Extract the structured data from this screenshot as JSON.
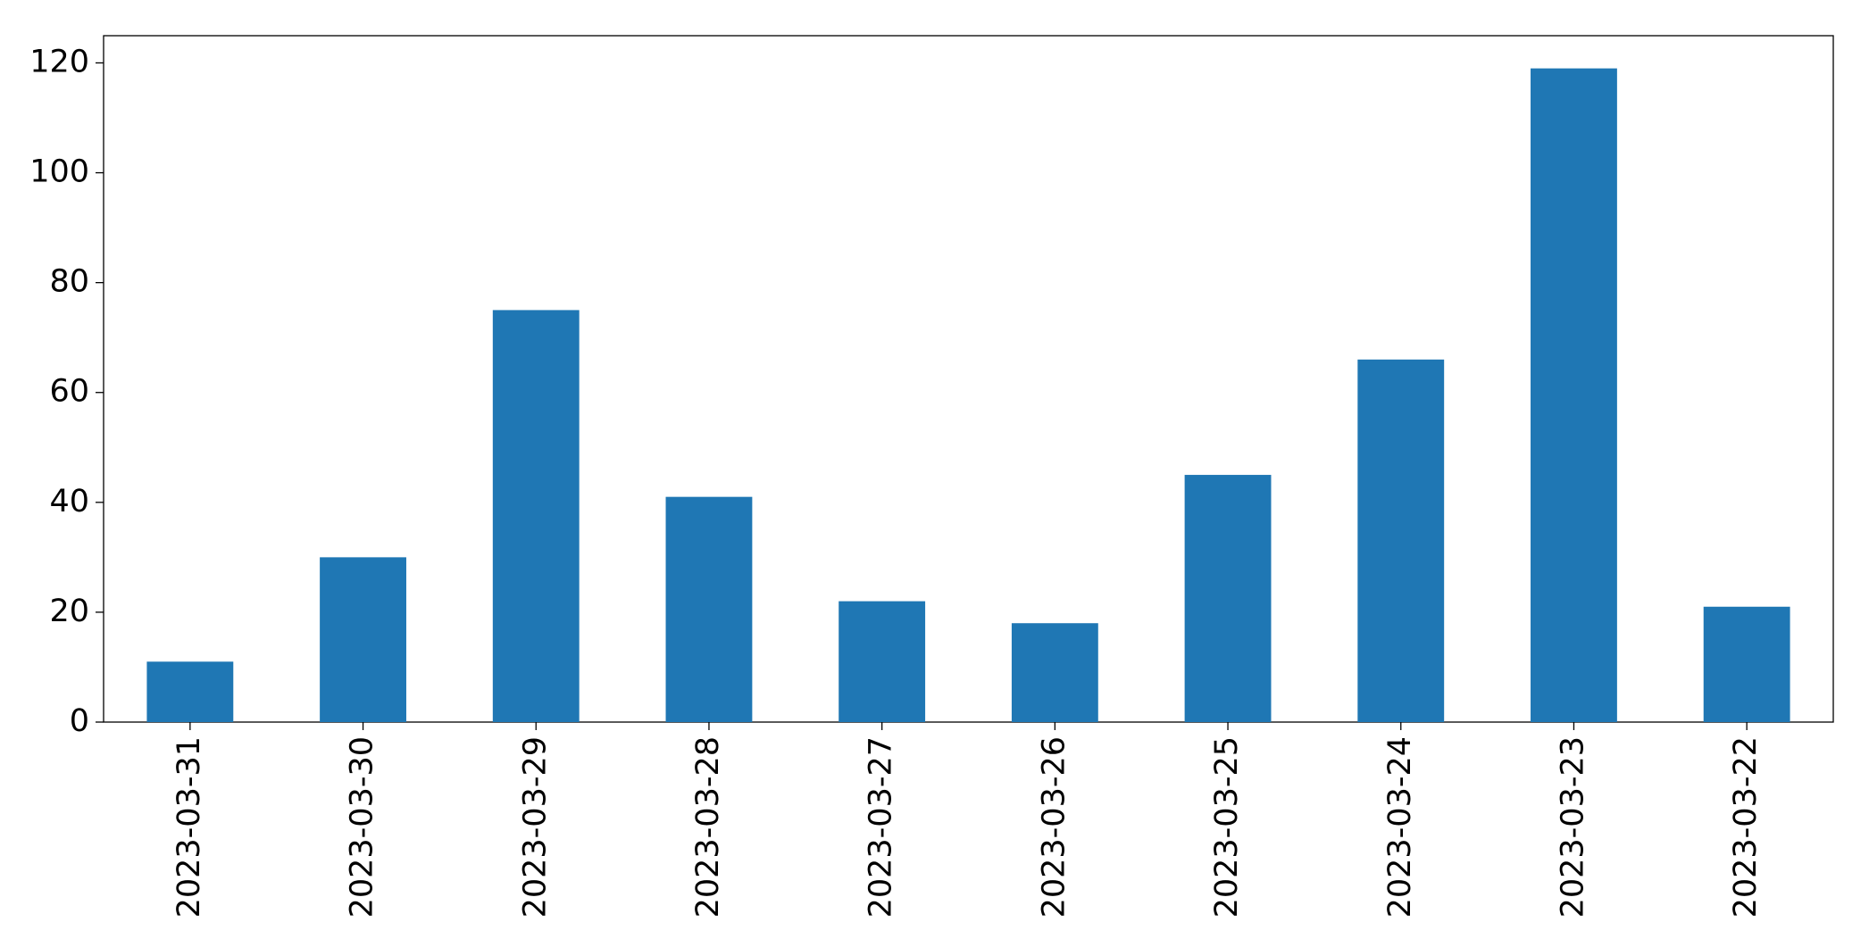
{
  "chart_data": {
    "type": "bar",
    "categories": [
      "2023-03-31",
      "2023-03-30",
      "2023-03-29",
      "2023-03-28",
      "2023-03-27",
      "2023-03-26",
      "2023-03-25",
      "2023-03-24",
      "2023-03-23",
      "2023-03-22"
    ],
    "values": [
      11,
      30,
      75,
      41,
      22,
      18,
      45,
      66,
      119,
      21
    ],
    "color": "#1f77b4",
    "ylim": [
      0,
      124.95
    ],
    "yticks": [
      0,
      20,
      40,
      60,
      80,
      100,
      120
    ],
    "grid": false
  }
}
